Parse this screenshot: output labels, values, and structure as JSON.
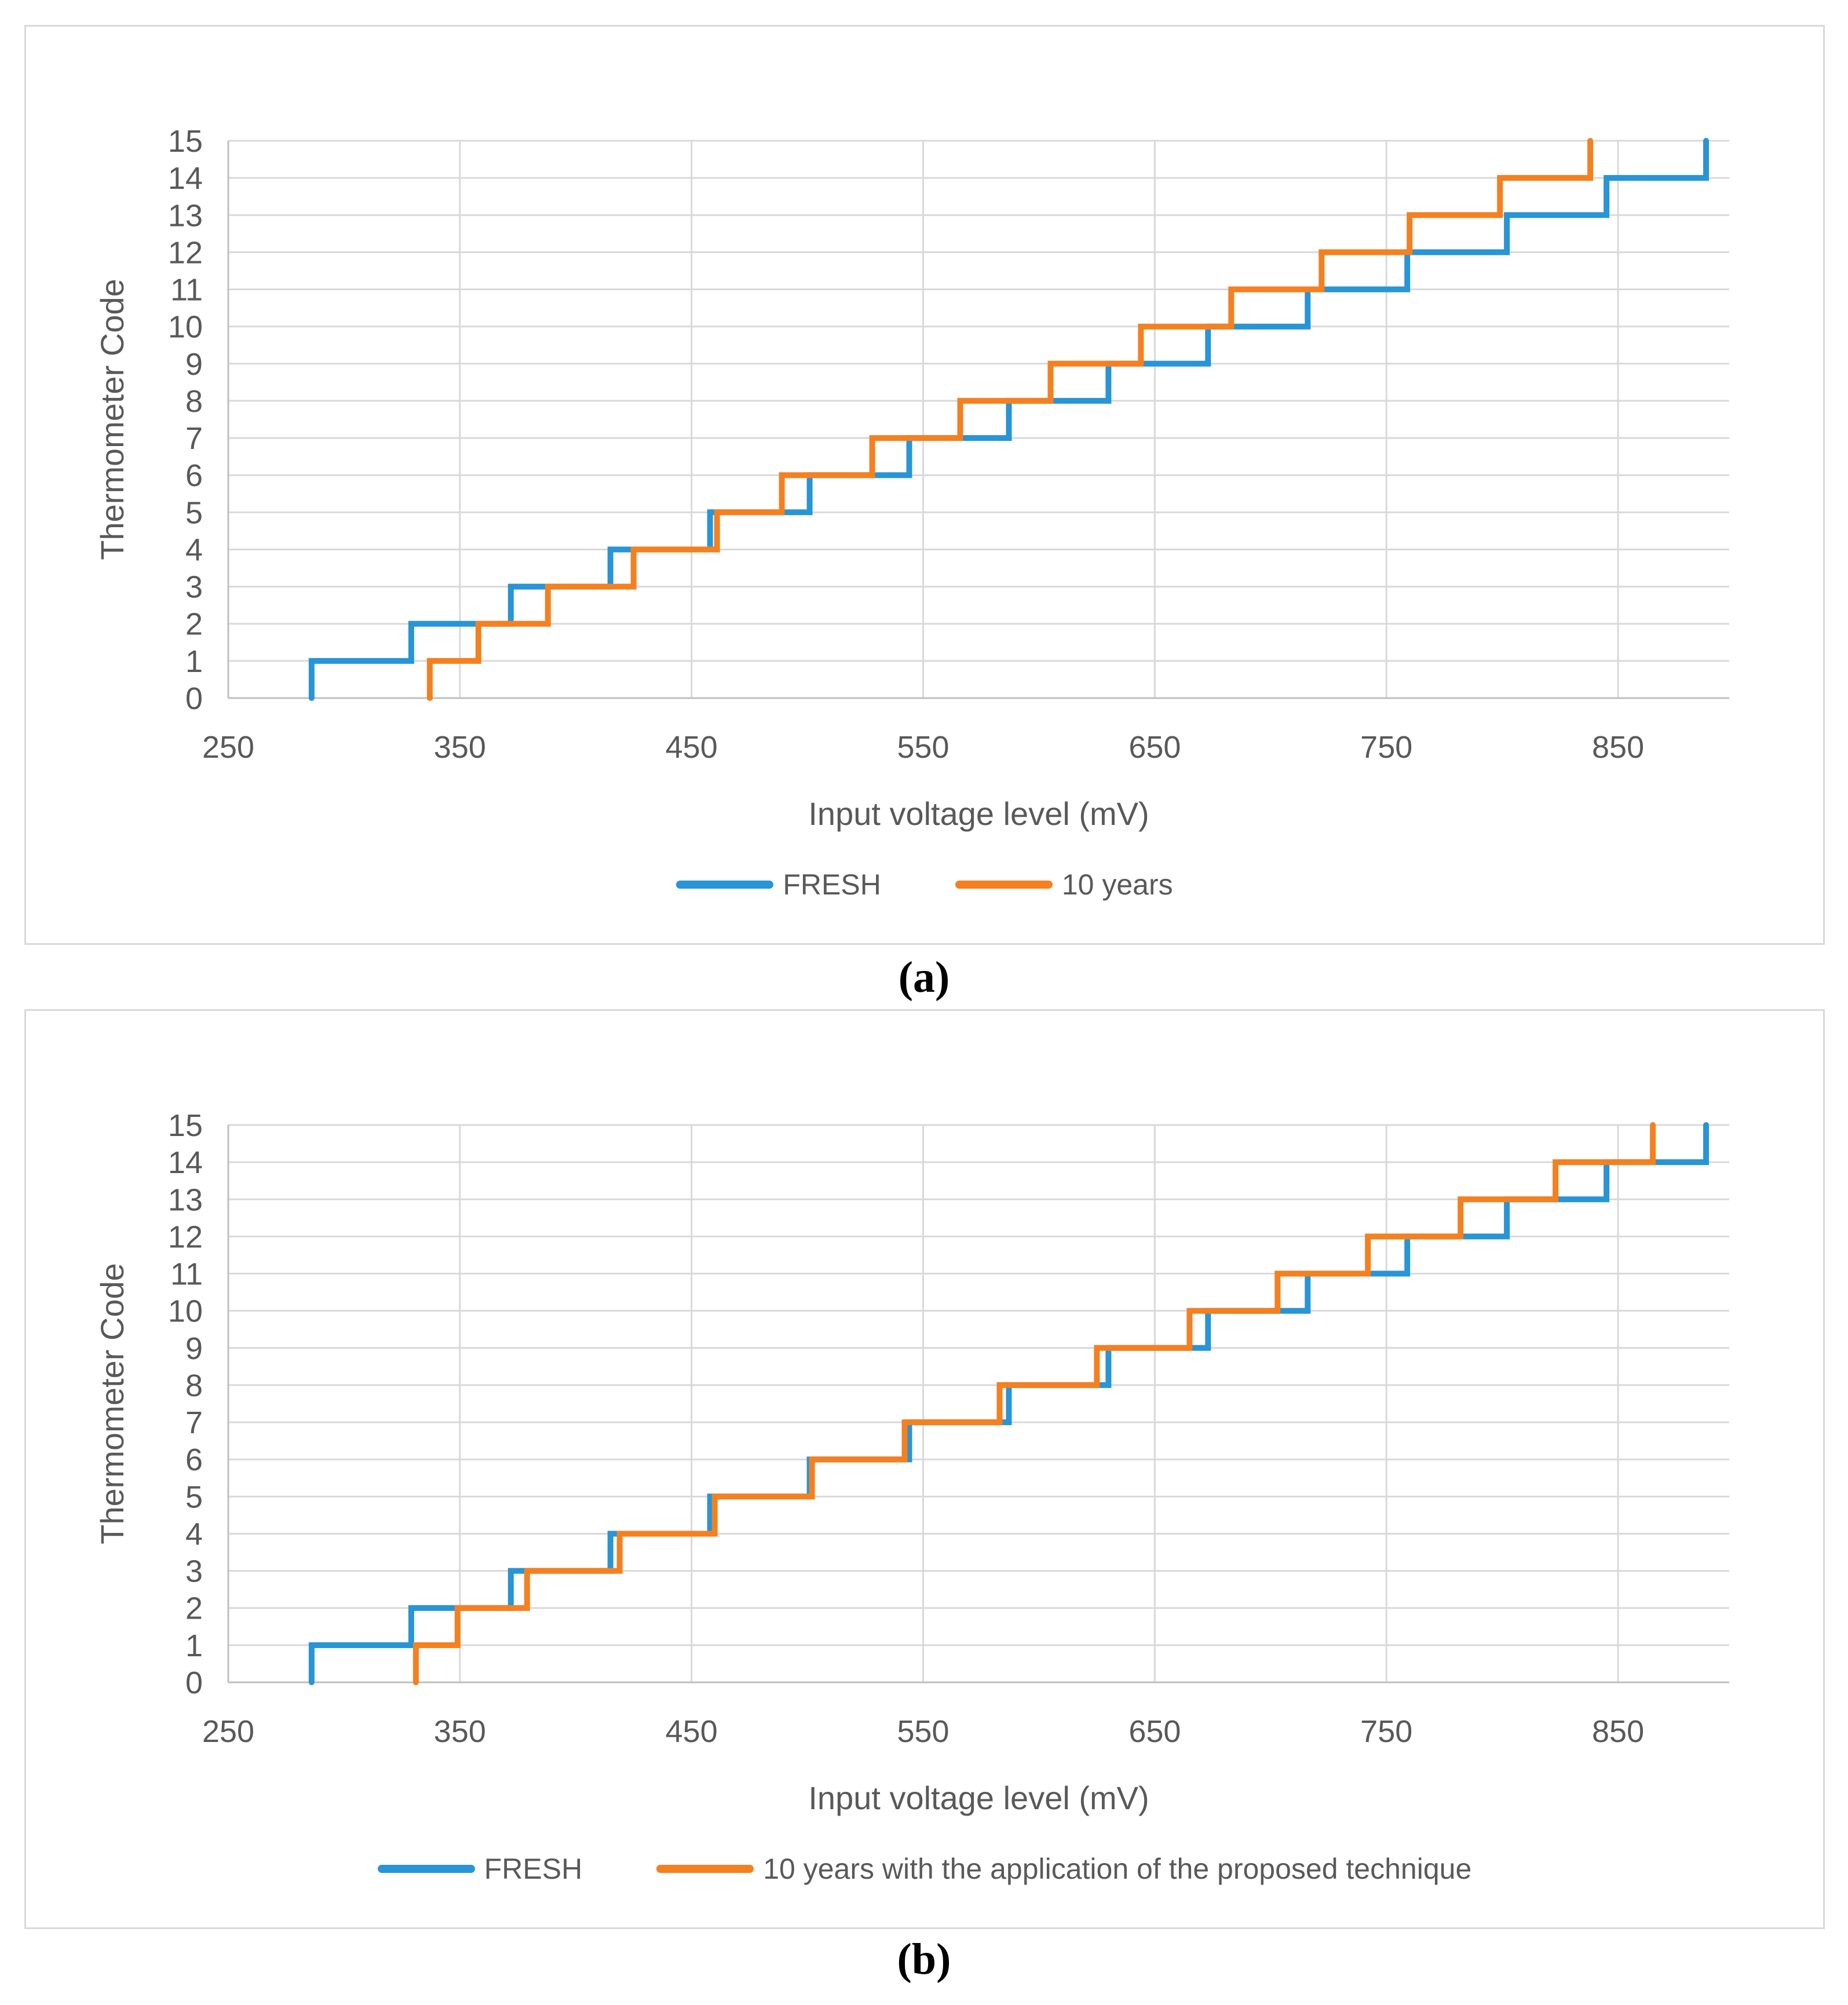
{
  "captions": {
    "a": "(a)",
    "b": "(b)"
  },
  "styles": {
    "series_blue": "#2795D6",
    "series_orange": "#F5801F",
    "text_gray": "#595959",
    "gridline_color": "#D9D9D9",
    "axis_line_color": "#BFBFBF",
    "panel_border_color": "#D9D9D9",
    "background": "#FFFFFF"
  },
  "chart_data": [
    {
      "id": "a",
      "type": "line",
      "step_style": "staircase",
      "title": "",
      "xlabel": "Input voltage level (mV)",
      "ylabel": "Thermometer Code",
      "xlim": [
        250,
        898
      ],
      "ylim": [
        0,
        15
      ],
      "x_ticks": [
        250,
        350,
        450,
        550,
        650,
        750,
        850
      ],
      "y_ticks": [
        0,
        1,
        2,
        3,
        4,
        5,
        6,
        7,
        8,
        9,
        10,
        11,
        12,
        13,
        14,
        15
      ],
      "grid": true,
      "legend_position": "bottom-center",
      "series": [
        {
          "name": "FRESH",
          "color": "#2795D6",
          "transitions_mV": [
            286,
            329,
            372,
            415,
            458,
            501,
            544,
            587,
            630,
            673,
            716,
            759,
            802,
            845,
            888
          ]
        },
        {
          "name": "10 years",
          "color": "#F5801F",
          "transitions_mV": [
            337,
            358,
            388,
            425,
            461,
            489,
            528,
            566,
            605,
            644,
            683,
            722,
            760,
            799,
            838
          ]
        }
      ]
    },
    {
      "id": "b",
      "type": "line",
      "step_style": "staircase",
      "title": "",
      "xlabel": "Input voltage level (mV)",
      "ylabel": "Thermometer Code",
      "xlim": [
        250,
        898
      ],
      "ylim": [
        0,
        15
      ],
      "x_ticks": [
        250,
        350,
        450,
        550,
        650,
        750,
        850
      ],
      "y_ticks": [
        0,
        1,
        2,
        3,
        4,
        5,
        6,
        7,
        8,
        9,
        10,
        11,
        12,
        13,
        14,
        15
      ],
      "grid": true,
      "legend_position": "bottom-center",
      "series": [
        {
          "name": "FRESH",
          "color": "#2795D6",
          "transitions_mV": [
            286,
            329,
            372,
            415,
            458,
            501,
            544,
            587,
            630,
            673,
            716,
            759,
            802,
            845,
            888
          ]
        },
        {
          "name": "10 years with the application of the proposed technique",
          "color": "#F5801F",
          "transitions_mV": [
            331,
            349,
            379,
            419,
            460,
            502,
            542,
            583,
            625,
            665,
            703,
            742,
            782,
            823,
            865
          ]
        }
      ]
    }
  ]
}
